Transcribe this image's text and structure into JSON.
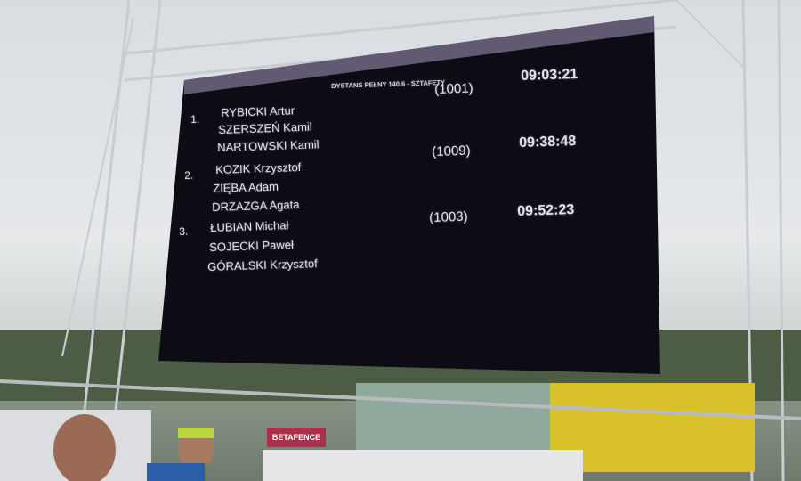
{
  "scoreboard": {
    "title": "DYSTANS PEŁNY 140.6 - SZTAFETY",
    "teams": [
      {
        "place": "1.",
        "bib": "(1001)",
        "time": "09:03:21",
        "members": [
          "RYBICKI Artur",
          "SZERSZEŃ Kamil",
          "NARTOWSKI Kamil"
        ]
      },
      {
        "place": "2.",
        "bib": "(1009)",
        "time": "09:38:48",
        "members": [
          "KOZIK Krzysztof",
          "ZIĘBA Adam",
          "DRZAZGA Agata"
        ]
      },
      {
        "place": "3.",
        "bib": "(1003)",
        "time": "09:52:23",
        "members": [
          "ŁUBIAN Michał",
          "SOJECKI Paweł",
          "GÓRALSKI Krzysztof"
        ]
      }
    ]
  },
  "banner": {
    "label": "BETAFENCE"
  },
  "colors": {
    "screen": "#0d0c14",
    "screen_text": "#e4e0ec",
    "truss": "#c9ccd0",
    "fence_yellow": "#d8c12a",
    "banner": "#a8304a"
  }
}
